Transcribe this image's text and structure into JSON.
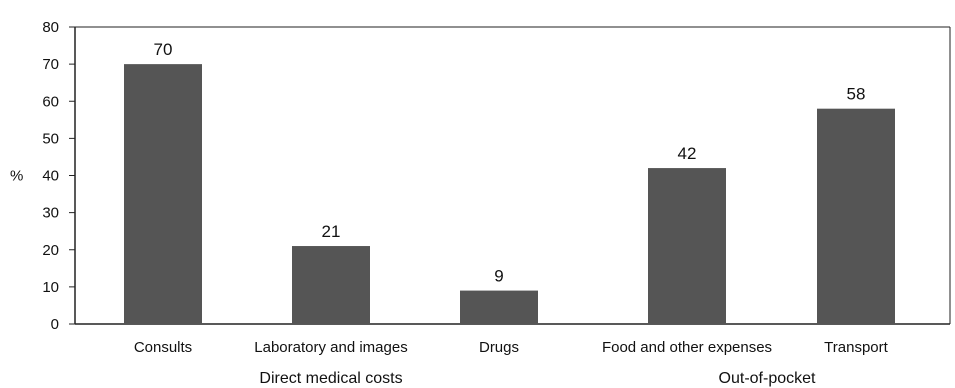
{
  "chart_data": {
    "type": "bar",
    "categories": [
      "Consults",
      "Laboratory and images",
      "Drugs",
      "Food and other expenses",
      "Transport"
    ],
    "values": [
      70,
      21,
      9,
      42,
      58
    ],
    "data_labels": [
      "70",
      "21",
      "9",
      "42",
      "58"
    ],
    "groups": [
      {
        "name": "Direct medical costs",
        "categories": [
          "Consults",
          "Laboratory and images",
          "Drugs"
        ]
      },
      {
        "name": "Out-of-pocket",
        "categories": [
          "Food and other expenses",
          "Transport"
        ]
      }
    ],
    "title": "",
    "xlabel": "",
    "ylabel": "%",
    "ylim": [
      0,
      80
    ],
    "yticks": [
      0,
      10,
      20,
      30,
      40,
      50,
      60,
      70,
      80
    ],
    "grid": false,
    "bar_color": "#555555"
  }
}
